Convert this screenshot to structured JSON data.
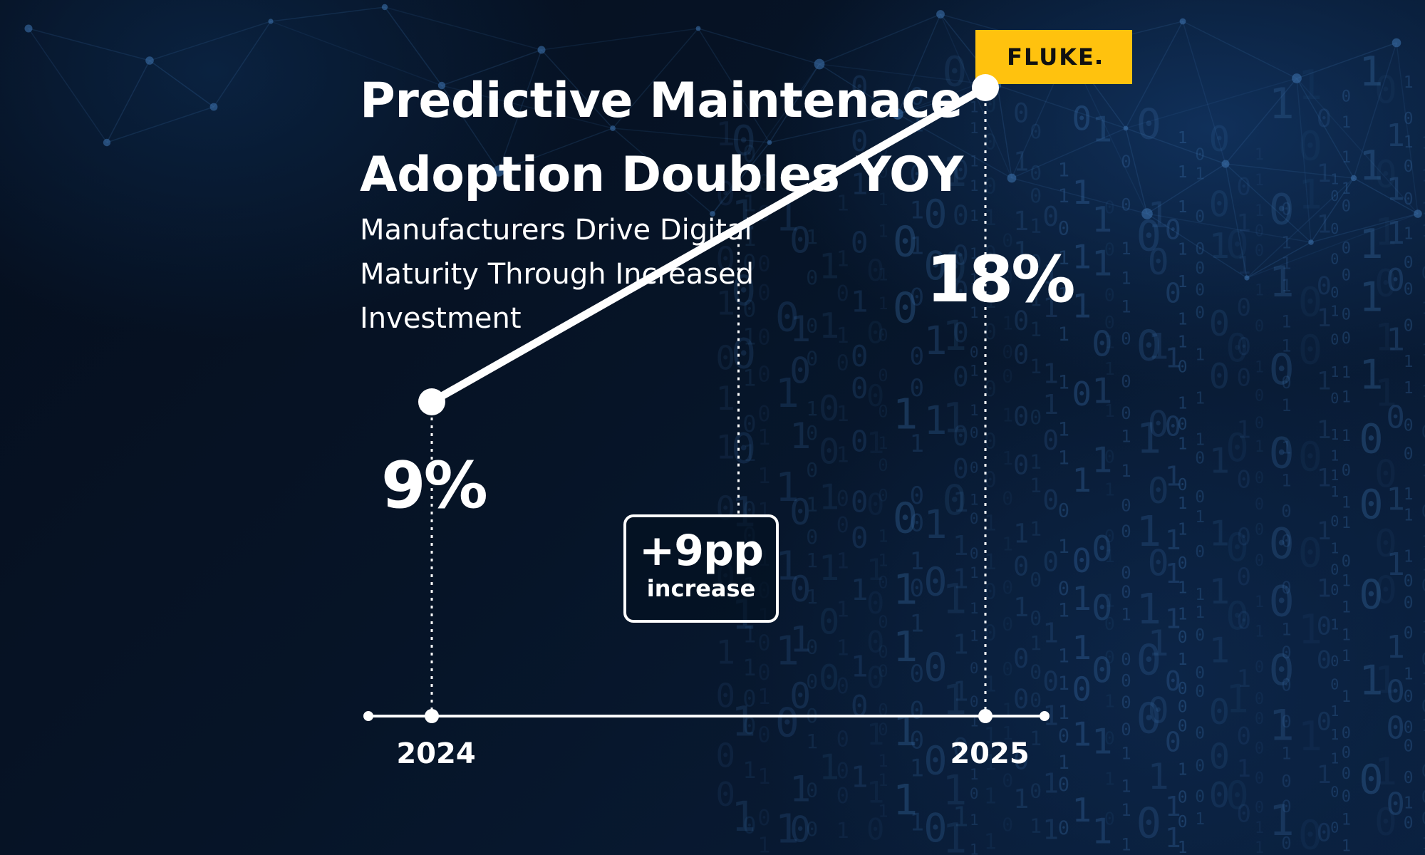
{
  "title_line1": "Predictive Maintenace",
  "title_line2": "Adoption Doubles YOY",
  "subtitle_line1": "Manufacturers Drive Digital",
  "subtitle_line2": "Maturity Through Increased",
  "subtitle_line3": "Investment",
  "logo": "FLUKE",
  "colors": {
    "background": "#04101f",
    "accent": "#ffffff",
    "logo_bg": "#ffc20e",
    "background_pattern": "#3a6ea8"
  },
  "chart_data": {
    "type": "line",
    "categories": [
      "2024",
      "2025"
    ],
    "values": [
      9,
      18
    ],
    "value_labels": [
      "9%",
      "18%"
    ],
    "ylim": [
      0,
      20
    ],
    "grid": false,
    "annotation": {
      "value": "+9pp",
      "label": "increase"
    }
  }
}
